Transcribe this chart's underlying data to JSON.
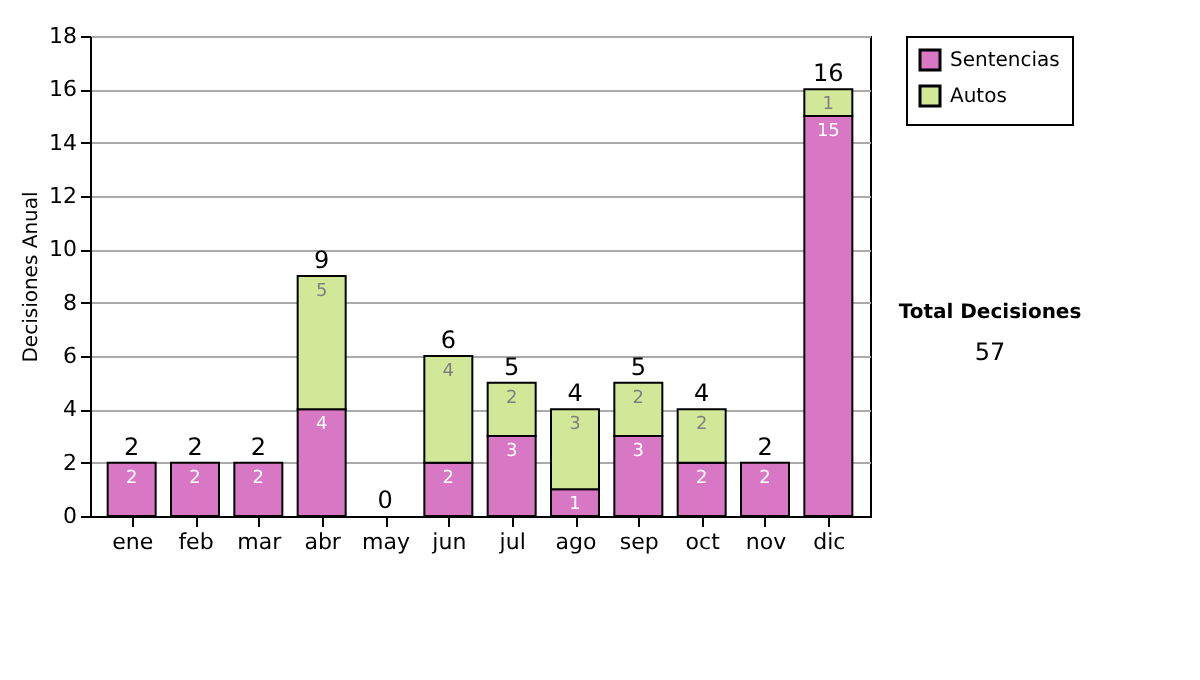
{
  "chart_data": {
    "type": "bar",
    "stacked": true,
    "ylabel": "Decisiones Anual",
    "categories": [
      "ene",
      "feb",
      "mar",
      "abr",
      "may",
      "jun",
      "jul",
      "ago",
      "sep",
      "oct",
      "nov",
      "dic"
    ],
    "series": [
      {
        "name": "Sentencias",
        "color": "#d878c4",
        "values": [
          2,
          2,
          2,
          4,
          0,
          2,
          3,
          1,
          3,
          2,
          2,
          15
        ],
        "value_labels": [
          "2",
          "2",
          "2",
          "4",
          null,
          "2",
          "3",
          "1",
          "3",
          "2",
          "2",
          "15"
        ]
      },
      {
        "name": "Autos",
        "color": "#d2e898",
        "values": [
          0,
          0,
          0,
          5,
          0,
          4,
          2,
          3,
          2,
          2,
          0,
          1
        ],
        "value_labels": [
          null,
          null,
          null,
          "5",
          null,
          "4",
          "2",
          "3",
          "2",
          "2",
          null,
          "1"
        ]
      }
    ],
    "totals": [
      "2",
      "2",
      "2",
      "9",
      "0",
      "6",
      "5",
      "4",
      "5",
      "4",
      "2",
      "16"
    ],
    "ylim": [
      0,
      18
    ],
    "yticks": [
      0,
      2,
      4,
      6,
      8,
      10,
      12,
      14,
      16,
      18
    ],
    "grid": "y",
    "legend": "right",
    "annotations": [
      "Total Decisiones",
      "57"
    ]
  }
}
